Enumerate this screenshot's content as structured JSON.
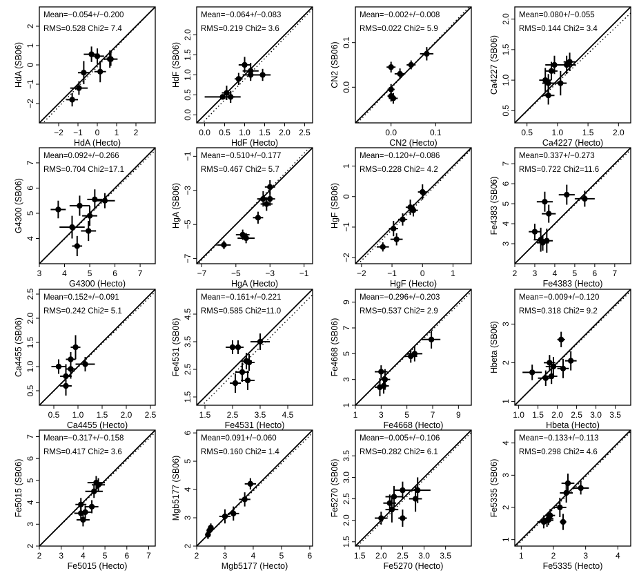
{
  "chart_data": [
    {
      "type": "scatter",
      "xlabel": "HdA  (Hecto)",
      "ylabel": "HdA  (SB06)",
      "mean": "Mean=−0.054+/−0.200",
      "rms": "RMS=0.528 Chi2= 7.4",
      "lim": [
        -3,
        3
      ],
      "xticks": [
        -2,
        -1,
        0,
        1,
        2
      ],
      "yticks": [
        -2,
        -1,
        0,
        1,
        2
      ],
      "dotted": [
        -3.2,
        3.0
      ],
      "points": [
        [
          -1.3,
          -1.8,
          0.3,
          0.35
        ],
        [
          -0.95,
          -1.2,
          0.45,
          0.35
        ],
        [
          -0.7,
          -0.4,
          0.3,
          0.6
        ],
        [
          -0.3,
          0.55,
          0.4,
          0.4
        ],
        [
          0.0,
          0.45,
          0.35,
          0.4
        ],
        [
          0.15,
          -0.35,
          0.3,
          0.55
        ],
        [
          0.65,
          0.3,
          0.25,
          0.45
        ],
        [
          0.7,
          0.3,
          0.35,
          0.35
        ]
      ]
    },
    {
      "type": "scatter",
      "xlabel": "HdF  (Hecto)",
      "ylabel": "HdF  (SB06)",
      "mean": "Mean=−0.064+/−0.083",
      "rms": "RMS=0.219 Chi2= 3.6",
      "lim": [
        -0.2,
        2.7
      ],
      "xticks": [
        0.0,
        0.5,
        1.0,
        1.5,
        2.0,
        2.5
      ],
      "yticks": [
        0.0,
        0.5,
        1.0,
        1.5,
        2.0
      ],
      "dotted": [
        -0.35,
        2.65
      ],
      "points": [
        [
          0.45,
          0.45,
          0.45,
          0.05
        ],
        [
          0.55,
          0.55,
          0.12,
          0.18
        ],
        [
          0.65,
          0.45,
          0.1,
          0.15
        ],
        [
          0.85,
          0.9,
          0.1,
          0.15
        ],
        [
          1.0,
          1.25,
          0.15,
          0.2
        ],
        [
          1.15,
          1.1,
          0.2,
          0.2
        ],
        [
          1.15,
          1.0,
          0.2,
          0.15
        ],
        [
          1.45,
          1.0,
          0.2,
          0.15
        ]
      ]
    },
    {
      "type": "scatter",
      "xlabel": "CN2  (Hecto)",
      "ylabel": "CN2  (SB06)",
      "mean": "Mean=−0.002+/−0.008",
      "rms": "RMS=0.022 Chi2= 5.9",
      "lim": [
        -0.08,
        0.18
      ],
      "xticks": [
        0.0,
        0.1
      ],
      "yticks": [
        0.0,
        0.1
      ],
      "dotted": [
        -0.085,
        0.185
      ],
      "points": [
        [
          0.0,
          -0.005,
          0.008,
          0.012
        ],
        [
          0.0,
          -0.02,
          0.008,
          0.012
        ],
        [
          0.005,
          -0.025,
          0.01,
          0.012
        ],
        [
          0.0,
          0.045,
          0.01,
          0.012
        ],
        [
          0.02,
          0.03,
          0.012,
          0.012
        ],
        [
          0.045,
          0.05,
          0.01,
          0.01
        ],
        [
          0.08,
          0.075,
          0.015,
          0.015
        ]
      ]
    },
    {
      "type": "scatter",
      "xlabel": "Ca4227  (Hecto)",
      "ylabel": "Ca4227  (SB06)",
      "mean": "Mean=0.080+/−0.055",
      "rms": "RMS=0.144 Chi2= 3.4",
      "lim": [
        0.3,
        2.2
      ],
      "xticks": [
        0.5,
        1.0,
        1.5,
        2.0
      ],
      "yticks": [
        0.5,
        1.0,
        1.5,
        2.0
      ],
      "dotted": [
        0.3,
        2.1
      ],
      "points": [
        [
          0.8,
          1.0,
          0.1,
          0.2
        ],
        [
          0.85,
          0.75,
          0.1,
          0.15
        ],
        [
          0.85,
          0.95,
          0.1,
          0.15
        ],
        [
          0.9,
          1.15,
          0.1,
          0.15
        ],
        [
          0.95,
          1.25,
          0.15,
          0.15
        ],
        [
          1.05,
          0.95,
          0.1,
          0.2
        ],
        [
          1.15,
          1.25,
          0.15,
          0.15
        ],
        [
          1.2,
          1.3,
          0.1,
          0.15
        ]
      ]
    },
    {
      "type": "scatter",
      "xlabel": "G4300  (Hecto)",
      "ylabel": "G4300  (SB06)",
      "mean": "Mean=0.092+/−0.266",
      "rms": "RMS=0.704 Chi2=17.1",
      "lim": [
        3.0,
        7.6
      ],
      "xticks": [
        3.0,
        4.0,
        5.0,
        6.0,
        7.0
      ],
      "yticks": [
        4.0,
        5.0,
        6.0,
        7.0
      ],
      "dotted": [
        3.0,
        7.5
      ],
      "points": [
        [
          3.75,
          5.15,
          0.3,
          0.35
        ],
        [
          4.3,
          4.45,
          0.5,
          0.45
        ],
        [
          4.5,
          3.7,
          0.2,
          0.4
        ],
        [
          4.6,
          5.3,
          0.4,
          0.4
        ],
        [
          4.95,
          4.3,
          0.3,
          0.4
        ],
        [
          5.0,
          4.9,
          0.3,
          0.4
        ],
        [
          5.2,
          5.55,
          0.3,
          0.4
        ],
        [
          5.6,
          5.5,
          0.4,
          0.3
        ]
      ]
    },
    {
      "type": "scatter",
      "xlabel": "HgA  (Hecto)",
      "ylabel": "HgA  (SB06)",
      "mean": "Mean=−0.510+/−0.177",
      "rms": "RMS=0.467 Chi2= 5.7",
      "lim": [
        -7.3,
        -0.5
      ],
      "xticks": [
        -7,
        -5,
        -3,
        -1
      ],
      "yticks": [
        -7,
        -5,
        -3,
        -1
      ],
      "dotted": [
        -7.4,
        -0.3
      ],
      "points": [
        [
          -5.7,
          -6.2,
          0.4,
          0.25
        ],
        [
          -4.6,
          -5.6,
          0.4,
          0.3
        ],
        [
          -4.4,
          -5.8,
          0.5,
          0.3
        ],
        [
          -3.7,
          -4.6,
          0.3,
          0.35
        ],
        [
          -3.4,
          -3.5,
          0.35,
          0.45
        ],
        [
          -3.2,
          -3.8,
          0.35,
          0.4
        ],
        [
          -3.0,
          -2.8,
          0.3,
          0.4
        ],
        [
          -3.0,
          -3.5,
          0.3,
          0.4
        ]
      ]
    },
    {
      "type": "scatter",
      "xlabel": "HgF  (Hecto)",
      "ylabel": "HgF  (SB06)",
      "mean": "Mean=−0.120+/−0.086",
      "rms": "RMS=0.228 Chi2= 4.2",
      "lim": [
        -2.2,
        1.6
      ],
      "xticks": [
        -2.0,
        -1.0,
        0.0,
        1.0
      ],
      "yticks": [
        -2.0,
        -1.0,
        0.0,
        1.0
      ],
      "dotted": [
        -2.3,
        1.55
      ],
      "points": [
        [
          -1.3,
          -1.65,
          0.2,
          0.15
        ],
        [
          -0.95,
          -1.05,
          0.15,
          0.25
        ],
        [
          -0.85,
          -1.4,
          0.2,
          0.2
        ],
        [
          -0.65,
          -0.75,
          0.15,
          0.2
        ],
        [
          -0.4,
          -0.35,
          0.15,
          0.25
        ],
        [
          -0.3,
          -0.45,
          0.15,
          0.2
        ],
        [
          0.0,
          0.15,
          0.15,
          0.25
        ]
      ]
    },
    {
      "type": "scatter",
      "xlabel": "Fe4383  (Hecto)",
      "ylabel": "Fe4383  (SB06)",
      "mean": "Mean=0.337+/−0.273",
      "rms": "RMS=0.722 Chi2=11.6",
      "lim": [
        2.0,
        7.8
      ],
      "xticks": [
        2,
        3,
        4,
        5,
        6,
        7
      ],
      "yticks": [
        3,
        4,
        5,
        6,
        7
      ],
      "dotted": [
        2.0,
        7.7
      ],
      "points": [
        [
          3.0,
          3.6,
          0.3,
          0.4
        ],
        [
          3.3,
          3.2,
          0.35,
          0.6
        ],
        [
          3.4,
          3.05,
          0.3,
          0.4
        ],
        [
          3.6,
          3.15,
          0.3,
          0.6
        ],
        [
          3.5,
          5.1,
          0.4,
          0.5
        ],
        [
          3.7,
          4.5,
          0.35,
          0.45
        ],
        [
          4.6,
          5.45,
          0.4,
          0.5
        ],
        [
          5.5,
          5.25,
          0.5,
          0.4
        ]
      ]
    },
    {
      "type": "scatter",
      "xlabel": "Ca4455  (Hecto)",
      "ylabel": "Ca4455  (SB06)",
      "mean": "Mean=0.152+/−0.091",
      "rms": "RMS=0.242 Chi2= 5.1",
      "lim": [
        0.2,
        2.6
      ],
      "xticks": [
        0.5,
        1.0,
        1.5,
        2.0,
        2.5
      ],
      "yticks": [
        0.5,
        1.0,
        1.5,
        2.0,
        2.5
      ],
      "dotted": [
        0.2,
        2.55
      ],
      "points": [
        [
          0.6,
          1.0,
          0.15,
          0.15
        ],
        [
          0.75,
          0.8,
          0.12,
          0.25
        ],
        [
          0.75,
          0.6,
          0.12,
          0.2
        ],
        [
          0.85,
          0.95,
          0.1,
          0.2
        ],
        [
          0.85,
          1.15,
          0.1,
          0.15
        ],
        [
          0.95,
          1.4,
          0.1,
          0.25
        ],
        [
          1.15,
          1.05,
          0.2,
          0.15
        ]
      ]
    },
    {
      "type": "scatter",
      "xlabel": "Fe4531  (Hecto)",
      "ylabel": "Fe4531  (SB06)",
      "mean": "Mean=−0.161+/−0.221",
      "rms": "RMS=0.585 Chi2=11.0",
      "lim": [
        1.2,
        5.4
      ],
      "xticks": [
        1.5,
        2.5,
        3.5,
        4.5
      ],
      "yticks": [
        1.5,
        2.5,
        3.5,
        4.5
      ],
      "dotted": [
        1.0,
        5.2
      ],
      "points": [
        [
          2.5,
          3.3,
          0.25,
          0.25
        ],
        [
          2.6,
          2.0,
          0.2,
          0.35
        ],
        [
          2.7,
          3.3,
          0.2,
          0.25
        ],
        [
          2.85,
          2.4,
          0.25,
          0.35
        ],
        [
          3.0,
          2.8,
          0.2,
          0.3
        ],
        [
          3.05,
          2.1,
          0.25,
          0.35
        ],
        [
          3.1,
          2.75,
          0.2,
          0.3
        ],
        [
          3.5,
          3.5,
          0.35,
          0.3
        ]
      ]
    },
    {
      "type": "scatter",
      "xlabel": "Fe4668  (Hecto)",
      "ylabel": "Fe4668  (SB06)",
      "mean": "Mean=−0.296+/−0.203",
      "rms": "RMS=0.537 Chi2= 2.9",
      "lim": [
        1.0,
        10.0
      ],
      "xticks": [
        1,
        3,
        5,
        7,
        9
      ],
      "yticks": [
        1,
        3,
        5,
        7,
        9
      ],
      "dotted": [
        1.0,
        9.8
      ],
      "points": [
        [
          2.9,
          2.4,
          0.4,
          0.7
        ],
        [
          3.0,
          3.6,
          0.5,
          0.5
        ],
        [
          3.2,
          2.5,
          0.4,
          0.6
        ],
        [
          3.3,
          3.0,
          0.4,
          0.8
        ],
        [
          5.3,
          4.8,
          0.5,
          0.5
        ],
        [
          5.6,
          5.0,
          0.6,
          0.6
        ],
        [
          6.9,
          6.1,
          0.7,
          0.7
        ]
      ]
    },
    {
      "type": "scatter",
      "xlabel": "Hbeta  (Hecto)",
      "ylabel": "Hbeta  (SB06)",
      "mean": "Mean=−0.009+/−0.120",
      "rms": "RMS=0.318 Chi2= 9.2",
      "lim": [
        0.9,
        3.9
      ],
      "xticks": [
        1.0,
        1.5,
        2.0,
        2.5,
        3.0,
        3.5
      ],
      "yticks": [
        1.0,
        2.0,
        3.0
      ],
      "dotted": [
        0.9,
        3.85
      ],
      "points": [
        [
          1.35,
          1.75,
          0.25,
          0.2
        ],
        [
          1.7,
          1.6,
          0.2,
          0.2
        ],
        [
          1.8,
          2.0,
          0.15,
          0.2
        ],
        [
          1.85,
          1.65,
          0.15,
          0.2
        ],
        [
          1.9,
          1.9,
          0.2,
          0.25
        ],
        [
          2.1,
          2.6,
          0.1,
          0.2
        ],
        [
          2.15,
          1.85,
          0.15,
          0.25
        ],
        [
          2.35,
          2.05,
          0.15,
          0.25
        ]
      ]
    },
    {
      "type": "scatter",
      "xlabel": "Fe5015  (Hecto)",
      "ylabel": "Fe5015  (SB06)",
      "mean": "Mean=−0.317+/−0.158",
      "rms": "RMS=0.417 Chi2= 3.6",
      "lim": [
        2.0,
        7.3
      ],
      "xticks": [
        2,
        3,
        4,
        5,
        6,
        7
      ],
      "yticks": [
        2,
        3,
        4,
        5,
        6,
        7
      ],
      "dotted": [
        2.0,
        7.2
      ],
      "points": [
        [
          3.9,
          3.5,
          0.3,
          0.3
        ],
        [
          3.9,
          3.9,
          0.25,
          0.3
        ],
        [
          4.0,
          3.2,
          0.3,
          0.3
        ],
        [
          4.1,
          3.55,
          0.3,
          0.3
        ],
        [
          4.4,
          3.8,
          0.3,
          0.3
        ],
        [
          4.5,
          4.5,
          0.4,
          0.3
        ],
        [
          4.6,
          4.9,
          0.4,
          0.3
        ],
        [
          4.7,
          4.8,
          0.3,
          0.3
        ]
      ]
    },
    {
      "type": "scatter",
      "xlabel": "Mgb5177  (Hecto)",
      "ylabel": "Mgb5177  (SB06)",
      "mean": "Mean=0.091+/−0.060",
      "rms": "RMS=0.160 Chi2= 1.4",
      "lim": [
        2.0,
        6.1
      ],
      "xticks": [
        2.0,
        3.0,
        4.0,
        5.0,
        6.0
      ],
      "yticks": [
        2.0,
        3.0,
        4.0,
        5.0,
        6.0
      ],
      "dotted": [
        2.0,
        6.0
      ],
      "points": [
        [
          2.4,
          2.4,
          0.1,
          0.15
        ],
        [
          2.45,
          2.55,
          0.1,
          0.15
        ],
        [
          2.5,
          2.65,
          0.1,
          0.15
        ],
        [
          3.0,
          3.05,
          0.2,
          0.25
        ],
        [
          3.3,
          3.15,
          0.2,
          0.25
        ],
        [
          3.7,
          3.65,
          0.2,
          0.25
        ],
        [
          3.9,
          4.2,
          0.2,
          0.2
        ]
      ]
    },
    {
      "type": "scatter",
      "xlabel": "Fe5270  (Hecto)",
      "ylabel": "Fe5270  (SB06)",
      "mean": "Mean=−0.005+/−0.106",
      "rms": "RMS=0.282 Chi2= 6.1",
      "lim": [
        1.4,
        4.1
      ],
      "xticks": [
        1.5,
        2.0,
        2.5,
        3.0,
        3.5
      ],
      "yticks": [
        1.5,
        2.0,
        2.5,
        3.0,
        3.5
      ],
      "dotted": [
        1.35,
        4.05
      ],
      "points": [
        [
          2.0,
          2.05,
          0.15,
          0.15
        ],
        [
          2.2,
          2.4,
          0.15,
          0.2
        ],
        [
          2.25,
          2.25,
          0.15,
          0.3
        ],
        [
          2.3,
          2.55,
          0.2,
          0.25
        ],
        [
          2.5,
          2.7,
          0.2,
          0.2
        ],
        [
          2.5,
          2.05,
          0.1,
          0.2
        ],
        [
          2.8,
          2.5,
          0.15,
          0.3
        ],
        [
          2.85,
          2.7,
          0.3,
          0.3
        ]
      ]
    },
    {
      "type": "scatter",
      "xlabel": "Fe5335  (Hecto)",
      "ylabel": "Fe5335  (SB06)",
      "mean": "Mean=−0.133+/−0.113",
      "rms": "RMS=0.298 Chi2= 4.6",
      "lim": [
        0.8,
        4.4
      ],
      "xticks": [
        1.0,
        2.0,
        3.0,
        4.0
      ],
      "yticks": [
        1.0,
        2.0,
        3.0,
        4.0
      ],
      "dotted": [
        0.75,
        4.35
      ],
      "points": [
        [
          1.7,
          1.55,
          0.2,
          0.2
        ],
        [
          1.8,
          1.6,
          0.2,
          0.2
        ],
        [
          1.85,
          1.65,
          0.15,
          0.2
        ],
        [
          1.9,
          1.75,
          0.15,
          0.2
        ],
        [
          2.2,
          2.0,
          0.2,
          0.3
        ],
        [
          2.3,
          1.55,
          0.1,
          0.25
        ],
        [
          2.4,
          2.45,
          0.2,
          0.3
        ],
        [
          2.45,
          2.75,
          0.2,
          0.3
        ],
        [
          2.85,
          2.6,
          0.25,
          0.2
        ]
      ]
    }
  ]
}
